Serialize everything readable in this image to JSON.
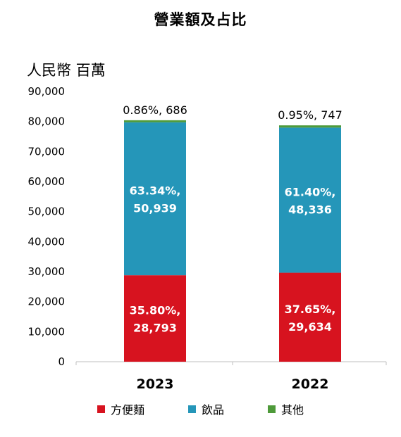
{
  "chart_data": {
    "type": "bar",
    "stacked": true,
    "title": "營業額及占比",
    "unit_label": "人民幣 百萬",
    "categories": [
      "2023",
      "2022"
    ],
    "ylim": [
      0,
      90000
    ],
    "y_ticks": [
      "0",
      "10,000",
      "20,000",
      "30,000",
      "40,000",
      "50,000",
      "60,000",
      "70,000",
      "80,000",
      "90,000"
    ],
    "series": [
      {
        "name": "方便麵",
        "color": "#d7131f",
        "values": [
          28793,
          29634
        ],
        "labels": [
          [
            "35.80%,",
            "28,793"
          ],
          [
            "37.65%,",
            "29,634"
          ]
        ]
      },
      {
        "name": "飲品",
        "color": "#2596b9",
        "values": [
          50939,
          48336
        ],
        "labels": [
          [
            "63.34%,",
            "50,939"
          ],
          [
            "61.40%,",
            "48,336"
          ]
        ]
      },
      {
        "name": "其他",
        "color": "#4e9a3a",
        "values": [
          686,
          747
        ],
        "labels": [
          [
            "0.86%, 686"
          ],
          [
            "0.95%, 747"
          ]
        ]
      }
    ],
    "grid": false,
    "legend": "bottom"
  }
}
